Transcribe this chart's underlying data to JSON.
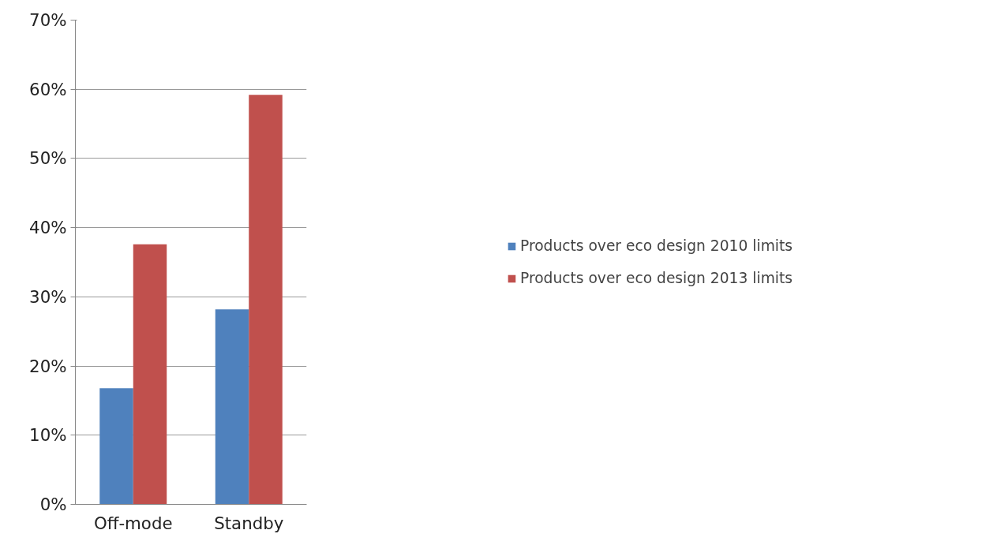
{
  "chart_data": {
    "type": "bar",
    "categories": [
      "Off-mode",
      "Standby"
    ],
    "series": [
      {
        "name": "Products over eco design 2010 limits",
        "color": "#4f81bd",
        "values": [
          16.8,
          28.2
        ]
      },
      {
        "name": "Products over eco design 2013 limits",
        "color": "#c0504d",
        "values": [
          37.6,
          59.2
        ]
      }
    ],
    "ylim": [
      0,
      70
    ],
    "yticks": [
      {
        "value": 0,
        "label": "0%"
      },
      {
        "value": 10,
        "label": "10%"
      },
      {
        "value": 20,
        "label": "20%"
      },
      {
        "value": 30,
        "label": "30%"
      },
      {
        "value": 40,
        "label": "40%"
      },
      {
        "value": 50,
        "label": "50%"
      },
      {
        "value": 60,
        "label": "60%"
      },
      {
        "value": 70,
        "label": "70%"
      }
    ],
    "grid": "y",
    "legend": "right"
  }
}
